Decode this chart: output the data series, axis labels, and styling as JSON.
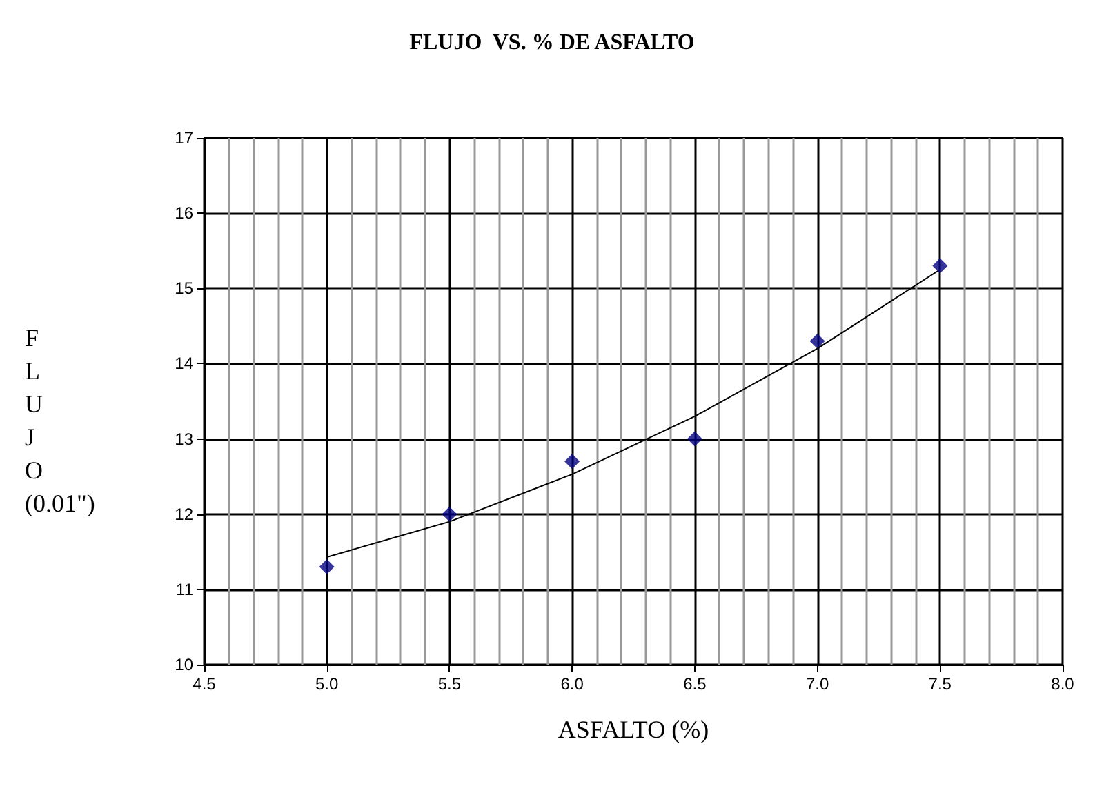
{
  "chart_data": {
    "type": "scatter",
    "title": "FLUJO  VS. % DE ASFALTO",
    "xlabel": "ASFALTO (%)",
    "ylabel": "FLUJO (0.01\")",
    "x": [
      5.0,
      5.5,
      6.0,
      6.5,
      7.0,
      7.5
    ],
    "series": [
      {
        "color": "#000080",
        "marker": "diamond",
        "values": [
          11.3,
          12.0,
          12.7,
          13.0,
          14.3,
          15.3
        ]
      },
      {
        "type": "line",
        "color": "#000000",
        "marker": "none",
        "line_style": "solid",
        "x": [
          5.0,
          5.5,
          6.0,
          6.5,
          7.0,
          7.5
        ],
        "values": [
          11.43,
          11.9,
          12.53,
          13.3,
          14.2,
          15.25
        ]
      }
    ],
    "xlim": [
      4.5,
      8.0
    ],
    "xticks": [
      4.5,
      {
        "value": 5,
        "label": "5.0"
      },
      5.5,
      {
        "value": 6,
        "label": "6.0"
      },
      6.5,
      {
        "value": 7,
        "label": "7.0"
      },
      7.5,
      {
        "value": 8,
        "label": "8.0"
      }
    ],
    "ylim": [
      10,
      17
    ],
    "yticks": [
      10,
      11,
      12,
      13,
      14,
      15,
      16,
      17
    ],
    "grid": true
  }
}
